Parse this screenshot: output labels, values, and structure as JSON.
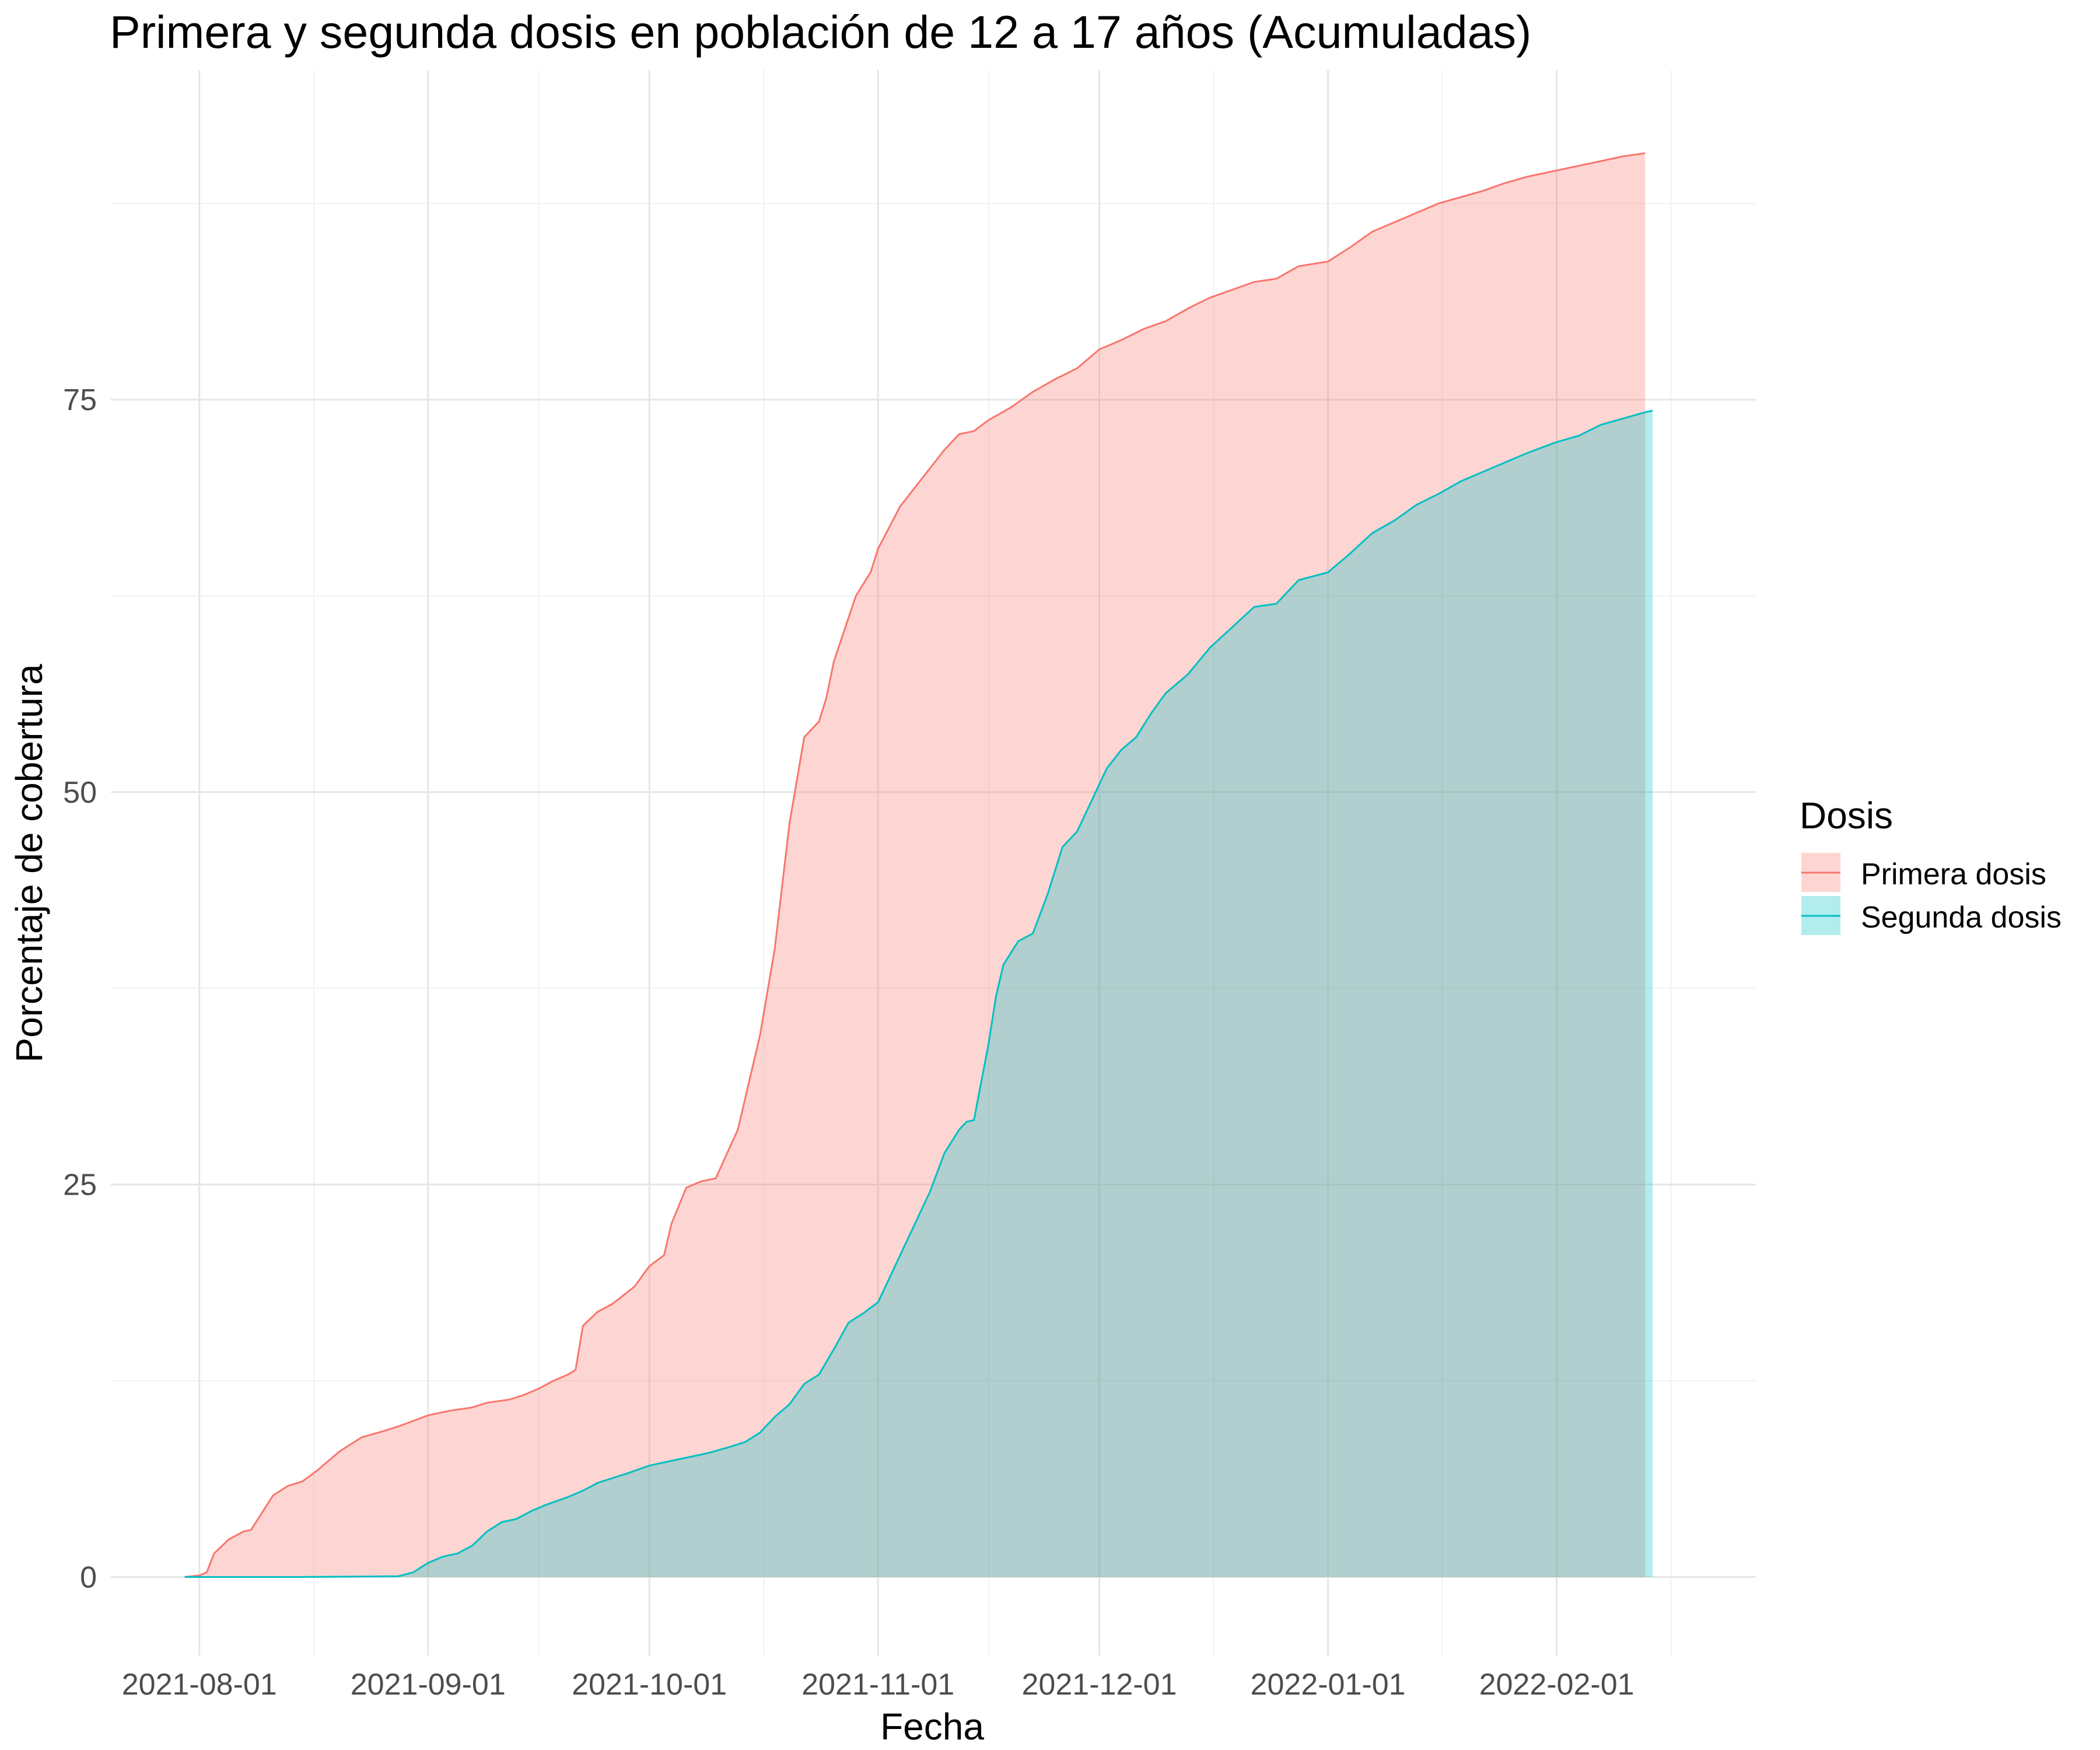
{
  "chart_data": {
    "type": "area",
    "title": "Primera y segunda dosis en población de 12 a 17 años (Acumuladas)",
    "xlabel": "Fecha",
    "ylabel": "Porcentaje de cobertura",
    "x_ticks": [
      "2021-08-01",
      "2021-09-01",
      "2021-10-01",
      "2021-11-01",
      "2021-12-01",
      "2022-01-01",
      "2022-02-01"
    ],
    "y_ticks": [
      0,
      25,
      50,
      75
    ],
    "xlim": [
      "2021-07-20",
      "2022-02-28"
    ],
    "ylim": [
      -5,
      96
    ],
    "grid": true,
    "legend": {
      "title": "Dosis",
      "position": "right"
    },
    "series": [
      {
        "name": "Primera dosis",
        "color": "#F8766D",
        "fill": "#F8766D",
        "points": [
          [
            "2021-07-30",
            0
          ],
          [
            "2021-08-01",
            0.1
          ],
          [
            "2021-08-02",
            0.3
          ],
          [
            "2021-08-03",
            1.5
          ],
          [
            "2021-08-05",
            2.4
          ],
          [
            "2021-08-07",
            2.9
          ],
          [
            "2021-08-08",
            3.0
          ],
          [
            "2021-08-11",
            5.2
          ],
          [
            "2021-08-13",
            5.8
          ],
          [
            "2021-08-15",
            6.1
          ],
          [
            "2021-08-17",
            6.8
          ],
          [
            "2021-08-20",
            8.0
          ],
          [
            "2021-08-23",
            8.9
          ],
          [
            "2021-08-26",
            9.3
          ],
          [
            "2021-08-28",
            9.6
          ],
          [
            "2021-09-01",
            10.3
          ],
          [
            "2021-09-04",
            10.6
          ],
          [
            "2021-09-07",
            10.8
          ],
          [
            "2021-09-09",
            11.1
          ],
          [
            "2021-09-12",
            11.3
          ],
          [
            "2021-09-14",
            11.6
          ],
          [
            "2021-09-16",
            12.0
          ],
          [
            "2021-09-18",
            12.5
          ],
          [
            "2021-09-20",
            12.9
          ],
          [
            "2021-09-21",
            13.2
          ],
          [
            "2021-09-22",
            16.0
          ],
          [
            "2021-09-24",
            16.9
          ],
          [
            "2021-09-26",
            17.4
          ],
          [
            "2021-09-29",
            18.5
          ],
          [
            "2021-10-01",
            19.8
          ],
          [
            "2021-10-03",
            20.5
          ],
          [
            "2021-10-04",
            22.5
          ],
          [
            "2021-10-06",
            24.8
          ],
          [
            "2021-10-08",
            25.2
          ],
          [
            "2021-10-10",
            25.4
          ],
          [
            "2021-10-13",
            28.5
          ],
          [
            "2021-10-16",
            34.5
          ],
          [
            "2021-10-18",
            40.0
          ],
          [
            "2021-10-20",
            48.0
          ],
          [
            "2021-10-22",
            53.5
          ],
          [
            "2021-10-24",
            54.5
          ],
          [
            "2021-10-25",
            56.0
          ],
          [
            "2021-10-26",
            58.3
          ],
          [
            "2021-10-29",
            62.5
          ],
          [
            "2021-10-31",
            64.0
          ],
          [
            "2021-11-01",
            65.5
          ],
          [
            "2021-11-04",
            68.2
          ],
          [
            "2021-11-07",
            70.0
          ],
          [
            "2021-11-10",
            71.8
          ],
          [
            "2021-11-12",
            72.8
          ],
          [
            "2021-11-14",
            73.0
          ],
          [
            "2021-11-16",
            73.7
          ],
          [
            "2021-11-19",
            74.5
          ],
          [
            "2021-11-22",
            75.5
          ],
          [
            "2021-11-25",
            76.3
          ],
          [
            "2021-11-28",
            77.0
          ],
          [
            "2021-12-01",
            78.2
          ],
          [
            "2021-12-04",
            78.8
          ],
          [
            "2021-12-07",
            79.5
          ],
          [
            "2021-12-10",
            80.0
          ],
          [
            "2021-12-13",
            80.8
          ],
          [
            "2021-12-16",
            81.5
          ],
          [
            "2021-12-19",
            82.0
          ],
          [
            "2021-12-22",
            82.5
          ],
          [
            "2021-12-25",
            82.7
          ],
          [
            "2021-12-28",
            83.5
          ],
          [
            "2022-01-01",
            83.8
          ],
          [
            "2022-01-04",
            84.7
          ],
          [
            "2022-01-07",
            85.7
          ],
          [
            "2022-01-10",
            86.3
          ],
          [
            "2022-01-13",
            86.9
          ],
          [
            "2022-01-16",
            87.5
          ],
          [
            "2022-01-19",
            87.9
          ],
          [
            "2022-01-22",
            88.3
          ],
          [
            "2022-01-25",
            88.8
          ],
          [
            "2022-01-28",
            89.2
          ],
          [
            "2022-02-01",
            89.6
          ],
          [
            "2022-02-04",
            89.9
          ],
          [
            "2022-02-07",
            90.2
          ],
          [
            "2022-02-10",
            90.5
          ],
          [
            "2022-02-13",
            90.7
          ]
        ]
      },
      {
        "name": "Segunda dosis",
        "color": "#00BFC4",
        "fill": "#00BFC4",
        "points": [
          [
            "2021-07-30",
            0
          ],
          [
            "2021-08-15",
            0
          ],
          [
            "2021-08-28",
            0.05
          ],
          [
            "2021-08-30",
            0.3
          ],
          [
            "2021-09-01",
            0.9
          ],
          [
            "2021-09-03",
            1.3
          ],
          [
            "2021-09-05",
            1.5
          ],
          [
            "2021-09-07",
            2.0
          ],
          [
            "2021-09-09",
            2.9
          ],
          [
            "2021-09-11",
            3.5
          ],
          [
            "2021-09-13",
            3.7
          ],
          [
            "2021-09-15",
            4.2
          ],
          [
            "2021-09-17",
            4.6
          ],
          [
            "2021-09-20",
            5.1
          ],
          [
            "2021-09-22",
            5.5
          ],
          [
            "2021-09-24",
            6.0
          ],
          [
            "2021-09-26",
            6.3
          ],
          [
            "2021-09-28",
            6.6
          ],
          [
            "2021-10-01",
            7.1
          ],
          [
            "2021-10-03",
            7.3
          ],
          [
            "2021-10-06",
            7.6
          ],
          [
            "2021-10-09",
            7.9
          ],
          [
            "2021-10-12",
            8.3
          ],
          [
            "2021-10-14",
            8.6
          ],
          [
            "2021-10-16",
            9.2
          ],
          [
            "2021-10-18",
            10.2
          ],
          [
            "2021-10-20",
            11.0
          ],
          [
            "2021-10-22",
            12.3
          ],
          [
            "2021-10-24",
            12.9
          ],
          [
            "2021-10-26",
            14.5
          ],
          [
            "2021-10-28",
            16.2
          ],
          [
            "2021-10-30",
            16.8
          ],
          [
            "2021-11-01",
            17.5
          ],
          [
            "2021-11-04",
            20.5
          ],
          [
            "2021-11-06",
            22.5
          ],
          [
            "2021-11-08",
            24.5
          ],
          [
            "2021-11-10",
            27.0
          ],
          [
            "2021-11-12",
            28.5
          ],
          [
            "2021-11-13",
            29.0
          ],
          [
            "2021-11-14",
            29.1
          ],
          [
            "2021-11-16",
            34.0
          ],
          [
            "2021-11-17",
            37.0
          ],
          [
            "2021-11-18",
            39.0
          ],
          [
            "2021-11-20",
            40.5
          ],
          [
            "2021-11-22",
            41.0
          ],
          [
            "2021-11-24",
            43.5
          ],
          [
            "2021-11-26",
            46.5
          ],
          [
            "2021-11-28",
            47.5
          ],
          [
            "2021-11-30",
            49.5
          ],
          [
            "2021-12-02",
            51.5
          ],
          [
            "2021-12-04",
            52.7
          ],
          [
            "2021-12-06",
            53.5
          ],
          [
            "2021-12-08",
            55.0
          ],
          [
            "2021-12-10",
            56.3
          ],
          [
            "2021-12-13",
            57.5
          ],
          [
            "2021-12-16",
            59.2
          ],
          [
            "2021-12-19",
            60.5
          ],
          [
            "2021-12-22",
            61.8
          ],
          [
            "2021-12-25",
            62.0
          ],
          [
            "2021-12-28",
            63.5
          ],
          [
            "2022-01-01",
            64.0
          ],
          [
            "2022-01-04",
            65.2
          ],
          [
            "2022-01-07",
            66.5
          ],
          [
            "2022-01-10",
            67.3
          ],
          [
            "2022-01-13",
            68.3
          ],
          [
            "2022-01-16",
            69.0
          ],
          [
            "2022-01-19",
            69.8
          ],
          [
            "2022-01-22",
            70.4
          ],
          [
            "2022-01-25",
            71.0
          ],
          [
            "2022-01-28",
            71.6
          ],
          [
            "2022-02-01",
            72.3
          ],
          [
            "2022-02-04",
            72.7
          ],
          [
            "2022-02-07",
            73.4
          ],
          [
            "2022-02-10",
            73.8
          ],
          [
            "2022-02-13",
            74.2
          ],
          [
            "2022-02-14",
            74.3
          ]
        ]
      }
    ]
  }
}
